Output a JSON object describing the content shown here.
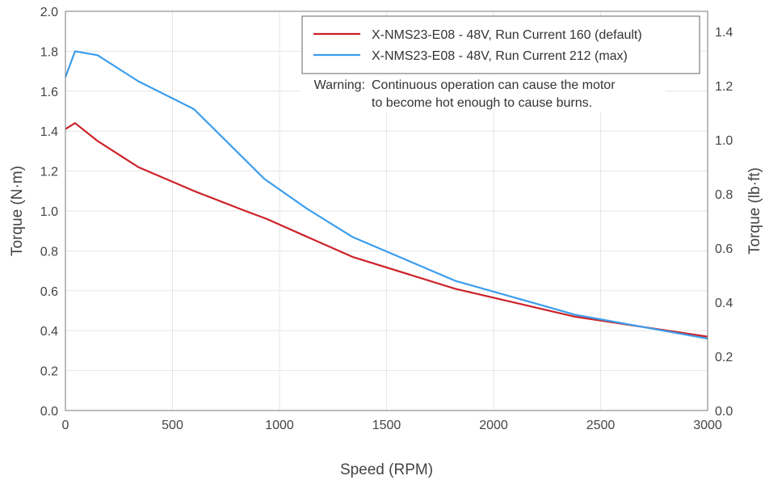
{
  "chart_data": {
    "type": "line",
    "xlabel": "Speed (RPM)",
    "ylabel": "Torque (N·m)",
    "y2label": "Torque (lb·ft)",
    "xlim": [
      0,
      3000
    ],
    "ylim": [
      0,
      2.0
    ],
    "y2lim": [
      0,
      1.475
    ],
    "x_ticks": [
      "0",
      "500",
      "1000",
      "1500",
      "2000",
      "2500",
      "3000"
    ],
    "y_ticks": [
      "0.0",
      "0.2",
      "0.4",
      "0.6",
      "0.8",
      "1.0",
      "1.2",
      "1.4",
      "1.6",
      "1.8",
      "2.0"
    ],
    "y2_ticks": [
      "0.0",
      "0.2",
      "0.4",
      "0.6",
      "0.8",
      "1.0",
      "1.2",
      "1.4"
    ],
    "grid": true,
    "legend_position": "top-right",
    "series": [
      {
        "name": "X-NMS23-E08 - 48V, Run Current 160 (default)",
        "color": "#cc2229",
        "x": [
          0,
          45,
          150,
          340,
          600,
          840,
          940,
          1340,
          1820,
          2380,
          3000
        ],
        "y": [
          1.41,
          1.44,
          1.35,
          1.22,
          1.1,
          1.0,
          0.96,
          0.77,
          0.61,
          0.47,
          0.37
        ]
      },
      {
        "name": "X-NMS23-E08 - 48V, Run Current 212 (max)",
        "color": "#3b9ded",
        "x": [
          0,
          45,
          150,
          340,
          600,
          930,
          1130,
          1340,
          1820,
          2380,
          3000
        ],
        "y": [
          1.67,
          1.8,
          1.78,
          1.65,
          1.51,
          1.16,
          1.01,
          0.87,
          0.65,
          0.48,
          0.36
        ]
      }
    ],
    "annotation": {
      "label": "Warning:",
      "lines": [
        "Continuous operation can cause the motor",
        "to become hot enough to cause burns."
      ]
    }
  }
}
